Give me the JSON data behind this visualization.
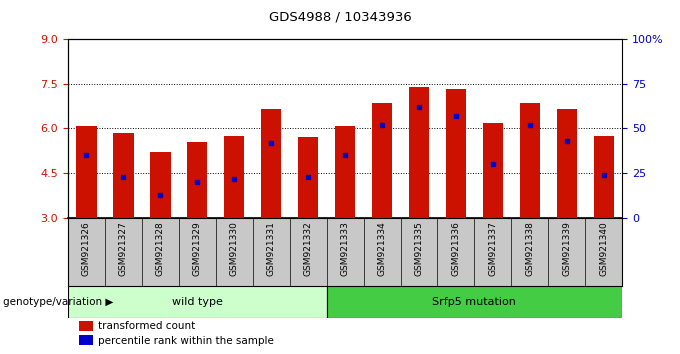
{
  "title": "GDS4988 / 10343936",
  "samples": [
    "GSM921326",
    "GSM921327",
    "GSM921328",
    "GSM921329",
    "GSM921330",
    "GSM921331",
    "GSM921332",
    "GSM921333",
    "GSM921334",
    "GSM921335",
    "GSM921336",
    "GSM921337",
    "GSM921338",
    "GSM921339",
    "GSM921340"
  ],
  "bar_values": [
    6.07,
    5.85,
    5.22,
    5.55,
    5.75,
    6.65,
    5.72,
    6.07,
    6.85,
    7.38,
    7.32,
    6.2,
    6.85,
    6.65,
    5.75
  ],
  "percentile_ranks": [
    35,
    23,
    13,
    20,
    22,
    42,
    23,
    35,
    52,
    62,
    57,
    30,
    52,
    43,
    24
  ],
  "wild_type_count": 7,
  "mutation_label": "Srfp5 mutation",
  "wild_type_label": "wild type",
  "group_label": "genotype/variation",
  "bar_color": "#cc1100",
  "percentile_color": "#0000cc",
  "ylim_left": [
    3,
    9
  ],
  "ylim_right": [
    0,
    100
  ],
  "yticks_left": [
    3,
    4.5,
    6,
    7.5,
    9
  ],
  "yticks_right": [
    0,
    25,
    50,
    75,
    100
  ],
  "grid_values": [
    4.5,
    6.0,
    7.5
  ],
  "legend_transformed": "transformed count",
  "legend_percentile": "percentile rank within the sample",
  "bg_color": "#ffffff",
  "tick_label_color_left": "#cc1100",
  "tick_label_color_right": "#0000cc",
  "bar_width": 0.55,
  "wt_bg": "#ccffcc",
  "mut_bg": "#44cc44",
  "xlabel_bg": "#c8c8c8",
  "n_samples": 15
}
